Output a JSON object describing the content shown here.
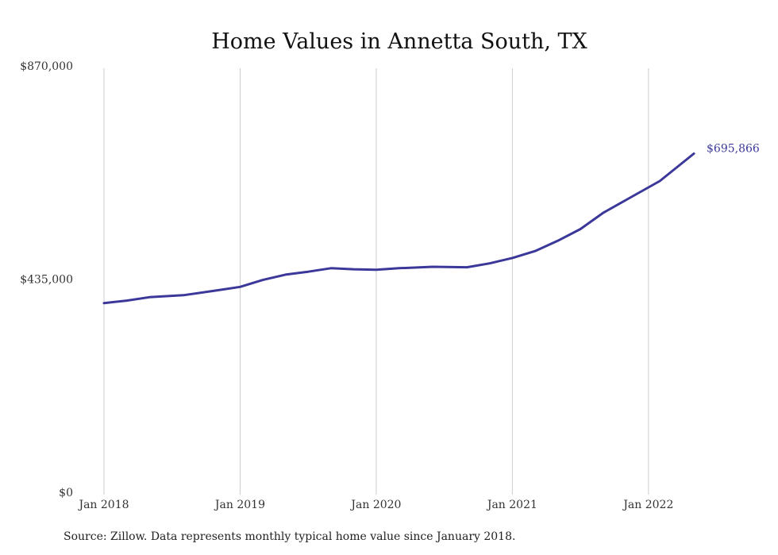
{
  "chart_data": {
    "type": "line",
    "title": "Home Values in Annetta South, TX",
    "xlabel": "",
    "ylabel": "",
    "ylim": [
      0,
      870000
    ],
    "y_ticks": [
      0,
      435000,
      870000
    ],
    "y_tick_labels": [
      "$0",
      "$435,000",
      "$870,000"
    ],
    "x_ticks": [
      "2018-01",
      "2019-01",
      "2020-01",
      "2021-01",
      "2022-01"
    ],
    "x_tick_labels": [
      "Jan 2018",
      "Jan 2019",
      "Jan 2020",
      "Jan 2021",
      "Jan 2022"
    ],
    "x_range": [
      "2018-01",
      "2022-05"
    ],
    "grid": "vertical",
    "legend": "none",
    "line_color": "#3b3899",
    "grid_color": "#cccccc",
    "end_label": "$695,866",
    "series": [
      {
        "values": [
          {
            "x": "2018-01",
            "y": 391000
          },
          {
            "x": "2018-03",
            "y": 396000
          },
          {
            "x": "2018-05",
            "y": 403000
          },
          {
            "x": "2018-08",
            "y": 407000
          },
          {
            "x": "2018-11",
            "y": 417000
          },
          {
            "x": "2019-01",
            "y": 424000
          },
          {
            "x": "2019-03",
            "y": 438000
          },
          {
            "x": "2019-05",
            "y": 449000
          },
          {
            "x": "2019-07",
            "y": 455000
          },
          {
            "x": "2019-09",
            "y": 462000
          },
          {
            "x": "2019-11",
            "y": 460000
          },
          {
            "x": "2020-01",
            "y": 459000
          },
          {
            "x": "2020-03",
            "y": 462000
          },
          {
            "x": "2020-06",
            "y": 465000
          },
          {
            "x": "2020-09",
            "y": 464000
          },
          {
            "x": "2020-11",
            "y": 472000
          },
          {
            "x": "2021-01",
            "y": 483000
          },
          {
            "x": "2021-03",
            "y": 497000
          },
          {
            "x": "2021-05",
            "y": 518000
          },
          {
            "x": "2021-07",
            "y": 542000
          },
          {
            "x": "2021-09",
            "y": 575000
          },
          {
            "x": "2021-11",
            "y": 601000
          },
          {
            "x": "2022-02",
            "y": 640000
          },
          {
            "x": "2022-05",
            "y": 695866
          }
        ]
      }
    ]
  },
  "source_text": "Source: Zillow. Data represents monthly typical home value since January 2018."
}
